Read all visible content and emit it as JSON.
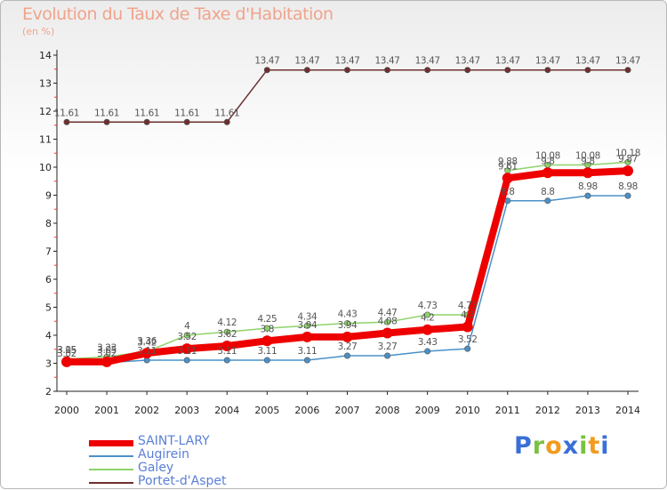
{
  "title": "Evolution du Taux de Taxe d'Habitation",
  "unit": "(en %)",
  "logo": {
    "text": "Proxiti",
    "letter_colors": [
      "#3a6fd6",
      "#7ac142",
      "#f29b1f",
      "#3a6fd6",
      "#7ac142",
      "#f29b1f",
      "#3a6fd6"
    ]
  },
  "chart_data": {
    "type": "line",
    "x": [
      "2000",
      "2001",
      "2002",
      "2003",
      "2004",
      "2005",
      "2006",
      "2007",
      "2008",
      "2009",
      "2010",
      "2011",
      "2012",
      "2013",
      "2014"
    ],
    "ylim": [
      2,
      14
    ],
    "yticks": [
      "2",
      "3",
      "4",
      "5",
      "6",
      "7",
      "8",
      "9",
      "10",
      "11",
      "12",
      "13",
      "14"
    ],
    "grid": false,
    "legend_placement": "bottom-left",
    "series": [
      {
        "name": "Portet-d'Aspet",
        "color": "#6e2f2f",
        "values": [
          11.61,
          11.61,
          11.61,
          11.61,
          11.61,
          13.47,
          13.47,
          13.47,
          13.47,
          13.47,
          13.47,
          13.47,
          13.47,
          13.47,
          13.47
        ],
        "labels": [
          "11.61",
          "11.61",
          "11.61",
          "11.61",
          "11.61",
          "13.47",
          "13.47",
          "13.47",
          "13.47",
          "13.47",
          "13.47",
          "13.47",
          "13.47",
          "13.47",
          "13.47"
        ]
      },
      {
        "name": "Augirein",
        "color": "#4a90c8",
        "values": [
          3.02,
          3.02,
          3.11,
          3.11,
          3.11,
          3.11,
          3.11,
          3.27,
          3.27,
          3.43,
          3.52,
          8.8,
          8.8,
          8.98,
          8.98
        ],
        "labels": [
          "3.02",
          "3.02",
          "3.11",
          "3.11",
          "3.11",
          "3.11",
          "3.11",
          "3.27",
          "3.27",
          "3.43",
          "3.52",
          "8.8",
          "8.8",
          "8.98",
          "8.98"
        ]
      },
      {
        "name": "Galey",
        "color": "#8ed36a",
        "values": [
          3.15,
          3.23,
          3.42,
          4,
          4.12,
          4.25,
          4.34,
          4.43,
          4.47,
          4.73,
          4.73,
          9.88,
          10.08,
          10.08,
          10.18
        ],
        "labels": [
          "3.15",
          "3.23",
          "3.42",
          "4",
          "4.12",
          "4.25",
          "4.34",
          "4.43",
          "4.47",
          "4.73",
          "4.73",
          "9.88",
          "10.08",
          "10.08",
          "10.18"
        ]
      },
      {
        "name": "SAINT-LARY",
        "color": "#ee0000",
        "values": [
          3.05,
          3.05,
          3.36,
          3.52,
          3.62,
          3.8,
          3.94,
          3.94,
          4.08,
          4.2,
          4.3,
          9.61,
          9.8,
          9.8,
          9.87
        ],
        "labels": [
          "3.05",
          "3.05",
          "3.36",
          "3.52",
          "3.62",
          "3.8",
          "3.94",
          "3.94",
          "4.08",
          "4.2",
          "4.3",
          "9.61",
          "9.8",
          "9.8",
          "9.87"
        ]
      }
    ],
    "legend": [
      "SAINT-LARY",
      "Augirein",
      "Galey",
      "Portet-d'Aspet"
    ]
  }
}
